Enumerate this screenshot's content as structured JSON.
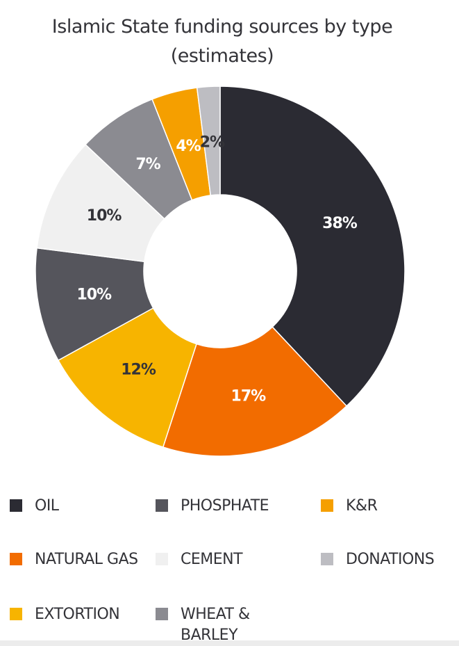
{
  "chart_data": {
    "type": "donut",
    "title": "Islamic State funding sources by type (estimates)",
    "series": [
      {
        "name": "OIL",
        "color": "#2b2b33",
        "values": [
          38
        ],
        "value_labels": [
          "38%"
        ]
      },
      {
        "name": "NATURAL GAS",
        "color": "#f26c00",
        "values": [
          17
        ],
        "value_labels": [
          "17%"
        ]
      },
      {
        "name": "EXTORTION",
        "color": "#f7b400",
        "values": [
          12
        ],
        "value_labels": [
          "12%"
        ]
      },
      {
        "name": "PHOSPHATE",
        "color": "#55555c",
        "values": [
          10
        ],
        "value_labels": [
          "10%"
        ]
      },
      {
        "name": "CEMENT",
        "color": "#f0f0f0",
        "values": [
          10
        ],
        "value_labels": [
          "10%"
        ]
      },
      {
        "name": "WHEAT & BARLEY",
        "color": "#8b8b91",
        "values": [
          7
        ],
        "value_labels": [
          "7%"
        ]
      },
      {
        "name": "K&R",
        "color": "#f59f00",
        "values": [
          4
        ],
        "value_labels": [
          "4%"
        ]
      },
      {
        "name": "DONATIONS",
        "color": "#bdbdc2",
        "values": [
          2
        ],
        "value_labels": [
          "2%"
        ]
      }
    ]
  }
}
